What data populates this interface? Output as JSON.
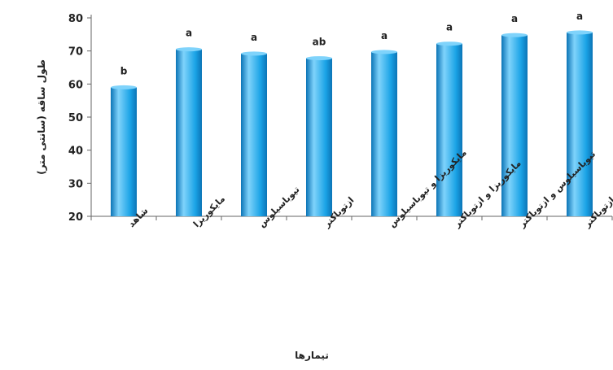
{
  "chart_data": {
    "type": "bar",
    "title": "",
    "xlabel": "تیمارها",
    "ylabel": "طول ساقه (سانتی متر)",
    "ylim": [
      20,
      80
    ],
    "yticks": [
      20,
      30,
      40,
      50,
      60,
      70,
      80
    ],
    "grid": false,
    "categories": [
      "شاهد",
      "مایکوریزا",
      "تیوباسیلوس",
      "ازتوباکتر",
      "مایکوریزا و تیوباسیلوس",
      "مایکوریزا و ازتوباکتر",
      "تیوباسیلوس و ازتوباکتر",
      "مایکوریزا تیوباسیلوس و ازتوباکتر"
    ],
    "values": [
      59,
      70.5,
      69.2,
      67.8,
      69.7,
      72.2,
      74.8,
      75.6
    ],
    "data_labels": [
      "b",
      "a",
      "a",
      "ab",
      "a",
      "a",
      "a",
      "a"
    ],
    "bar_color": "#1aa3e6",
    "bar_highlight": "#7fd3fb",
    "bar_shadow": "#0b74b6"
  }
}
